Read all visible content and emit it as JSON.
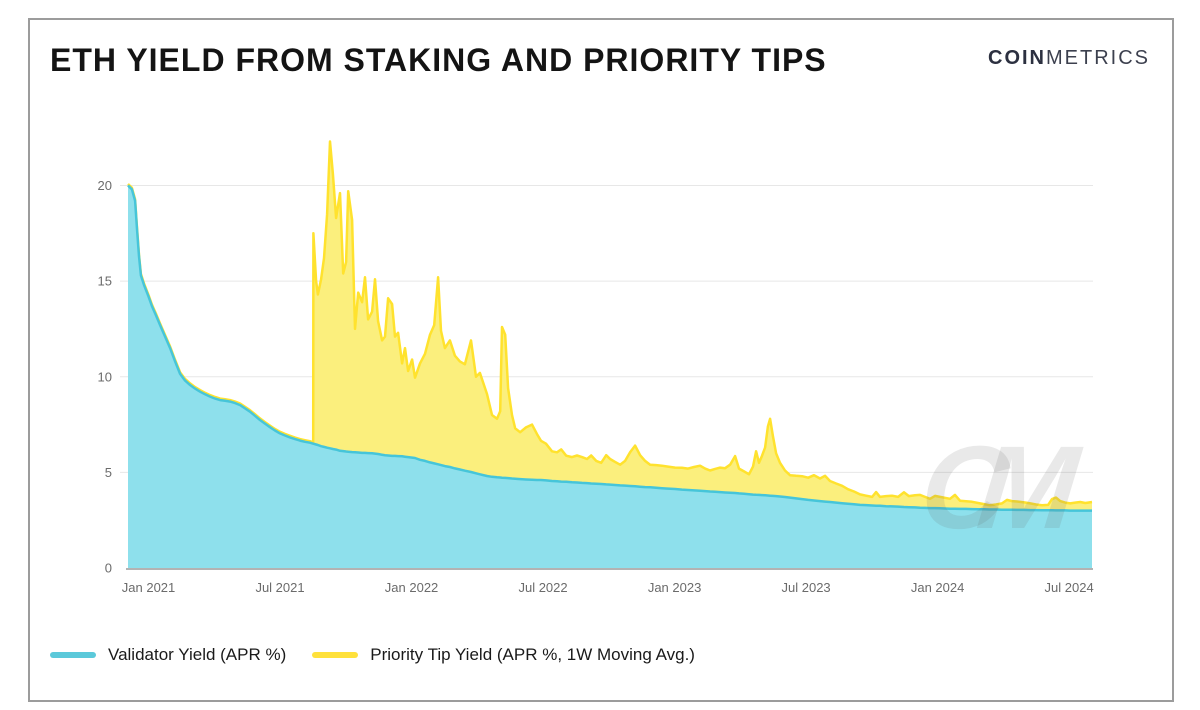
{
  "window": {
    "border_color": "#9c9c9c",
    "background": "#ffffff"
  },
  "header": {
    "title": "ETH YIELD FROM STAKING AND PRIORITY TIPS",
    "logo": {
      "bold_part": "COIN",
      "light_part": "METRICS",
      "color": "#2c3040"
    }
  },
  "watermark": "CM",
  "legend": [
    {
      "label": "Validator Yield (APR %)",
      "swatch_color": "#5BC9DA"
    },
    {
      "label": "Priority Tip Yield (APR %, 1W Moving Avg.)",
      "swatch_color": "#FFE13B"
    }
  ],
  "chart_data": {
    "type": "area",
    "stacked": true,
    "title": "ETH YIELD FROM STAKING AND PRIORITY TIPS",
    "xlabel": "",
    "ylabel": "",
    "x_unit": "decimal_year",
    "xlim": [
      2020.922,
      2024.587
    ],
    "ylim": [
      0,
      22.9
    ],
    "grid": "horizontal",
    "legend_position": "bottom-left",
    "y_tick_values": [
      0,
      5,
      10,
      15,
      20
    ],
    "y_gridlines": [
      5,
      10,
      15,
      20
    ],
    "x_ticks": [
      {
        "t": 2021.0,
        "label": "Jan 2021"
      },
      {
        "t": 2021.5,
        "label": "Jul 2021"
      },
      {
        "t": 2022.0,
        "label": "Jan 2022"
      },
      {
        "t": 2022.5,
        "label": "Jul 2022"
      },
      {
        "t": 2023.0,
        "label": "Jan 2023"
      },
      {
        "t": 2023.5,
        "label": "Jul 2023"
      },
      {
        "t": 2024.0,
        "label": "Jan 2024"
      },
      {
        "t": 2024.5,
        "label": "Jul 2024"
      }
    ],
    "x": [
      2020.922,
      2020.937,
      2020.949,
      2020.956,
      2020.964,
      2020.971,
      2020.983,
      2021.0,
      2021.013,
      2021.029,
      2021.044,
      2021.063,
      2021.082,
      2021.101,
      2021.12,
      2021.139,
      2021.158,
      2021.177,
      2021.196,
      2021.215,
      2021.234,
      2021.253,
      2021.272,
      2021.291,
      2021.31,
      2021.329,
      2021.348,
      2021.367,
      2021.386,
      2021.405,
      2021.424,
      2021.443,
      2021.462,
      2021.481,
      2021.5,
      2021.519,
      2021.538,
      2021.557,
      2021.576,
      2021.595,
      2021.614,
      2021.626,
      2021.627,
      2021.637,
      2021.644,
      2021.656,
      2021.667,
      2021.679,
      2021.69,
      2021.701,
      2021.713,
      2021.728,
      2021.74,
      2021.751,
      2021.759,
      2021.774,
      2021.785,
      2021.797,
      2021.812,
      2021.823,
      2021.835,
      2021.85,
      2021.861,
      2021.873,
      2021.888,
      2021.899,
      2021.911,
      2021.926,
      2021.937,
      2021.949,
      2021.964,
      2021.975,
      2021.987,
      2022.002,
      2022.013,
      2022.032,
      2022.051,
      2022.07,
      2022.086,
      2022.101,
      2022.112,
      2022.127,
      2022.146,
      2022.165,
      2022.184,
      2022.203,
      2022.226,
      2022.245,
      2022.26,
      2022.287,
      2022.306,
      2022.325,
      2022.337,
      2022.344,
      2022.356,
      2022.367,
      2022.382,
      2022.394,
      2022.413,
      2022.435,
      2022.458,
      2022.477,
      2022.492,
      2022.511,
      2022.534,
      2022.553,
      2022.569,
      2022.588,
      2022.61,
      2022.629,
      2022.648,
      2022.667,
      2022.683,
      2022.702,
      2022.721,
      2022.74,
      2022.755,
      2022.774,
      2022.793,
      2022.812,
      2022.831,
      2022.85,
      2022.869,
      2022.888,
      2022.907,
      2022.93,
      2022.952,
      2022.975,
      2023.002,
      2023.028,
      2023.051,
      2023.074,
      2023.097,
      2023.116,
      2023.135,
      2023.154,
      2023.173,
      2023.192,
      2023.211,
      2023.23,
      2023.245,
      2023.264,
      2023.283,
      2023.298,
      2023.31,
      2023.321,
      2023.332,
      2023.344,
      2023.355,
      2023.363,
      2023.374,
      2023.386,
      2023.401,
      2023.42,
      2023.439,
      2023.462,
      2023.485,
      2023.508,
      2023.53,
      2023.553,
      2023.572,
      2023.591,
      2023.614,
      2023.637,
      2023.659,
      2023.682,
      2023.705,
      2023.728,
      2023.751,
      2023.766,
      2023.781,
      2023.804,
      2023.827,
      2023.85,
      2023.872,
      2023.891,
      2023.914,
      2023.933,
      2023.952,
      2023.971,
      2023.99,
      2024.009,
      2024.028,
      2024.047,
      2024.066,
      2024.085,
      2024.108,
      2024.131,
      2024.154,
      2024.176,
      2024.199,
      2024.222,
      2024.245,
      2024.264,
      2024.283,
      2024.306,
      2024.329,
      2024.352,
      2024.374,
      2024.397,
      2024.42,
      2024.435,
      2024.45,
      2024.466,
      2024.485,
      2024.504,
      2024.523,
      2024.542,
      2024.561,
      2024.572,
      2024.587
    ],
    "series": [
      {
        "name": "Validator Yield (APR %)",
        "fill": "#8EE0EC",
        "line": "#46C5D9",
        "values": [
          20.0,
          19.8,
          19.2,
          17.8,
          16.3,
          15.3,
          14.8,
          14.2,
          13.7,
          13.2,
          12.7,
          12.1,
          11.5,
          10.8,
          10.15,
          9.8,
          9.57,
          9.38,
          9.22,
          9.08,
          8.96,
          8.86,
          8.78,
          8.74,
          8.7,
          8.62,
          8.52,
          8.35,
          8.17,
          7.96,
          7.74,
          7.55,
          7.36,
          7.19,
          7.04,
          6.93,
          6.83,
          6.74,
          6.66,
          6.6,
          6.55,
          6.5,
          6.5,
          6.46,
          6.43,
          6.37,
          6.33,
          6.29,
          6.26,
          6.22,
          6.19,
          6.13,
          6.11,
          6.09,
          6.08,
          6.06,
          6.05,
          6.04,
          6.02,
          6.02,
          6.01,
          6.0,
          5.98,
          5.96,
          5.92,
          5.9,
          5.88,
          5.86,
          5.86,
          5.85,
          5.84,
          5.82,
          5.8,
          5.77,
          5.75,
          5.66,
          5.6,
          5.52,
          5.47,
          5.42,
          5.38,
          5.33,
          5.28,
          5.21,
          5.15,
          5.09,
          5.02,
          4.95,
          4.9,
          4.81,
          4.77,
          4.74,
          4.73,
          4.72,
          4.71,
          4.7,
          4.68,
          4.67,
          4.65,
          4.63,
          4.61,
          4.6,
          4.6,
          4.58,
          4.55,
          4.54,
          4.52,
          4.51,
          4.48,
          4.47,
          4.45,
          4.44,
          4.42,
          4.41,
          4.39,
          4.37,
          4.36,
          4.34,
          4.32,
          4.31,
          4.29,
          4.27,
          4.25,
          4.23,
          4.22,
          4.2,
          4.17,
          4.15,
          4.13,
          4.1,
          4.08,
          4.06,
          4.04,
          4.02,
          4.0,
          3.99,
          3.97,
          3.95,
          3.93,
          3.92,
          3.9,
          3.88,
          3.86,
          3.84,
          3.83,
          3.82,
          3.81,
          3.8,
          3.79,
          3.78,
          3.77,
          3.76,
          3.74,
          3.71,
          3.68,
          3.64,
          3.6,
          3.56,
          3.53,
          3.5,
          3.47,
          3.45,
          3.42,
          3.39,
          3.36,
          3.33,
          3.3,
          3.29,
          3.27,
          3.26,
          3.25,
          3.23,
          3.22,
          3.21,
          3.19,
          3.18,
          3.17,
          3.15,
          3.14,
          3.13,
          3.13,
          3.12,
          3.11,
          3.1,
          3.1,
          3.09,
          3.09,
          3.08,
          3.07,
          3.07,
          3.06,
          3.06,
          3.05,
          3.05,
          3.05,
          3.04,
          3.04,
          3.03,
          3.03,
          3.02,
          3.02,
          3.02,
          3.01,
          3.01,
          3.01,
          3.0,
          3.0,
          3.0,
          3.0,
          3.0,
          3.0
        ]
      },
      {
        "name": "Priority Tip Yield (APR %, 1W Moving Avg.)",
        "fill": "#FBEF7D",
        "line": "#FFE22E",
        "values": [
          0.08,
          0.08,
          0.08,
          0.08,
          0.08,
          0.08,
          0.08,
          0.08,
          0.08,
          0.08,
          0.08,
          0.08,
          0.08,
          0.08,
          0.08,
          0.08,
          0.08,
          0.08,
          0.08,
          0.08,
          0.08,
          0.08,
          0.08,
          0.08,
          0.08,
          0.08,
          0.08,
          0.08,
          0.08,
          0.08,
          0.08,
          0.08,
          0.08,
          0.08,
          0.08,
          0.08,
          0.08,
          0.08,
          0.08,
          0.08,
          0.08,
          0.08,
          11.0,
          8.54,
          7.87,
          8.73,
          9.87,
          12.21,
          16.04,
          14.38,
          12.11,
          13.47,
          9.29,
          9.91,
          13.62,
          12.14,
          6.45,
          8.36,
          7.88,
          9.18,
          6.99,
          7.4,
          9.12,
          6.94,
          5.98,
          6.2,
          8.22,
          7.94,
          6.24,
          6.45,
          4.86,
          5.68,
          4.5,
          5.13,
          4.2,
          5.04,
          5.6,
          6.68,
          7.23,
          9.78,
          7.02,
          6.17,
          6.62,
          5.89,
          5.65,
          5.56,
          6.88,
          5.05,
          5.3,
          4.29,
          3.23,
          3.06,
          3.47,
          7.88,
          7.49,
          4.7,
          3.32,
          2.63,
          2.45,
          2.72,
          2.89,
          2.4,
          2.05,
          1.92,
          1.55,
          1.51,
          1.68,
          1.36,
          1.32,
          1.41,
          1.35,
          1.26,
          1.46,
          1.19,
          1.11,
          1.53,
          1.34,
          1.21,
          1.08,
          1.29,
          1.76,
          2.13,
          1.65,
          1.37,
          1.18,
          1.18,
          1.18,
          1.15,
          1.12,
          1.14,
          1.12,
          1.22,
          1.31,
          1.18,
          1.1,
          1.19,
          1.28,
          1.27,
          1.47,
          1.93,
          1.3,
          1.17,
          1.04,
          1.46,
          2.27,
          1.68,
          2.04,
          2.5,
          3.61,
          4.02,
          3.13,
          2.24,
          1.76,
          1.39,
          1.17,
          1.18,
          1.2,
          1.16,
          1.32,
          1.18,
          1.35,
          1.1,
          1.0,
          0.91,
          0.76,
          0.67,
          0.55,
          0.49,
          0.45,
          0.71,
          0.47,
          0.53,
          0.56,
          0.51,
          0.77,
          0.58,
          0.63,
          0.67,
          0.58,
          0.49,
          0.64,
          0.6,
          0.56,
          0.52,
          0.72,
          0.43,
          0.4,
          0.38,
          0.33,
          0.27,
          0.22,
          0.26,
          0.33,
          0.51,
          0.45,
          0.43,
          0.39,
          0.35,
          0.29,
          0.26,
          0.28,
          0.58,
          0.67,
          0.49,
          0.41,
          0.38,
          0.42,
          0.45,
          0.4,
          0.42,
          0.45
        ]
      }
    ]
  }
}
